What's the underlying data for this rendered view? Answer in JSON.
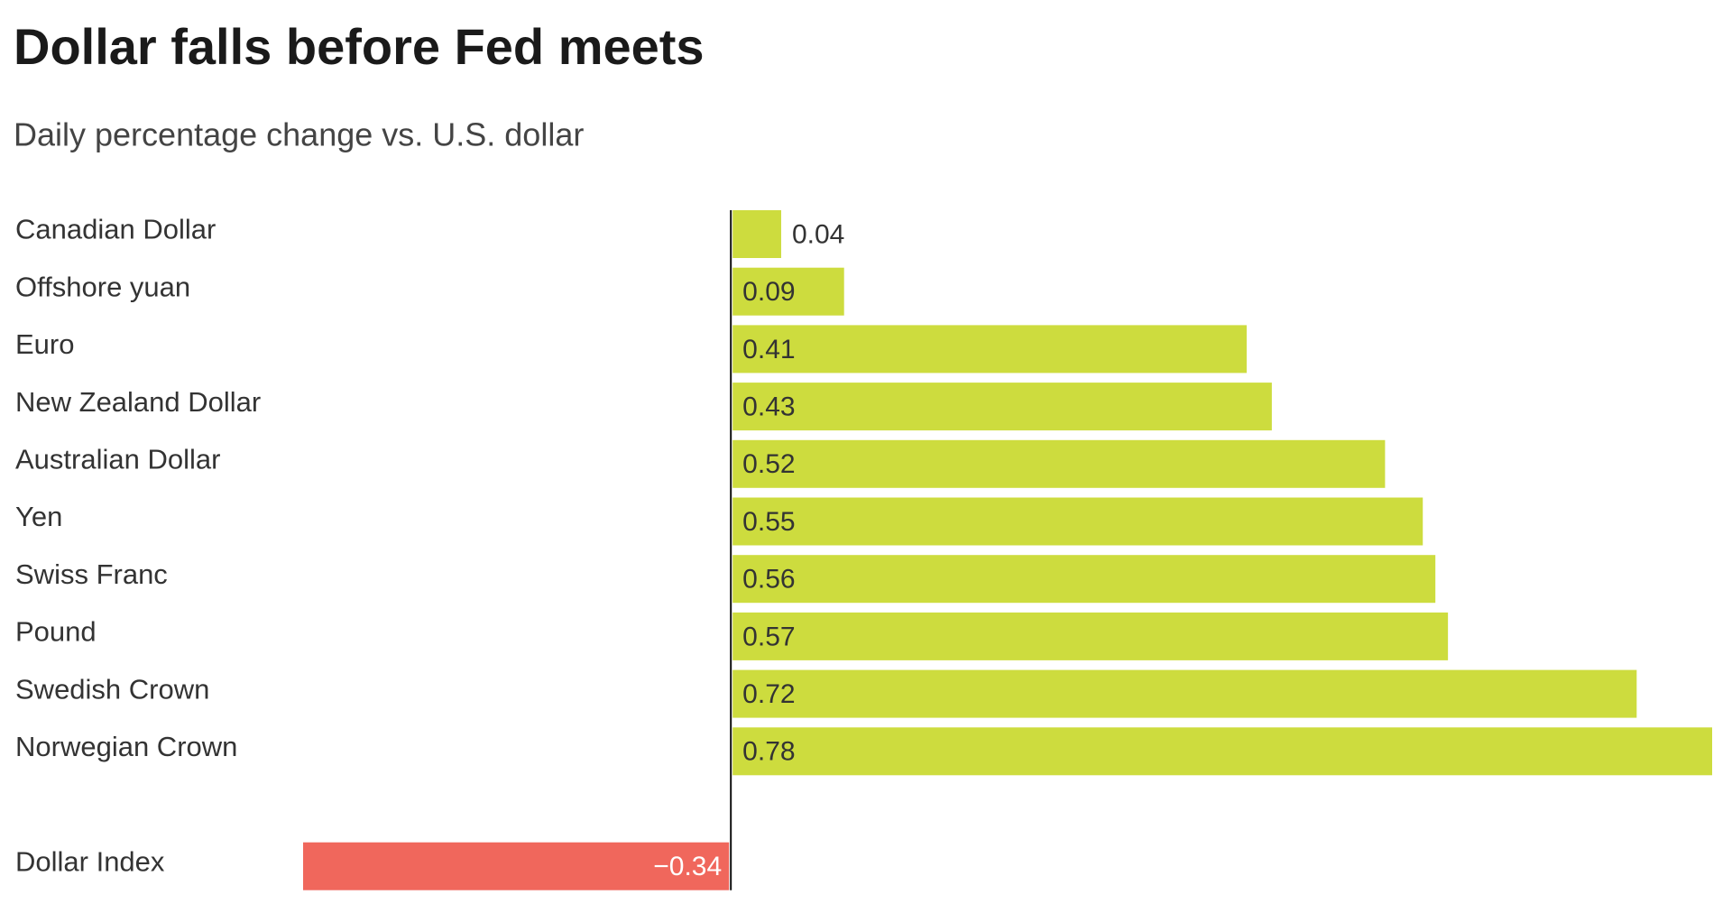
{
  "chart_data": {
    "type": "bar",
    "orientation": "horizontal",
    "title": "Dollar falls before Fed meets",
    "subtitle": "Daily percentage change vs. U.S. dollar",
    "categories": [
      "Canadian Dollar",
      "Offshore yuan",
      "Euro",
      "New Zealand Dollar",
      "Australian Dollar",
      "Yen",
      "Swiss Franc",
      "Pound",
      "Swedish Crown",
      "Norwegian Crown",
      null,
      "Dollar Index"
    ],
    "values": [
      0.04,
      0.09,
      0.41,
      0.43,
      0.52,
      0.55,
      0.56,
      0.57,
      0.72,
      0.78,
      null,
      -0.34
    ],
    "value_labels": [
      "0.04",
      "0.09",
      "0.41",
      "0.43",
      "0.52",
      "0.55",
      "0.56",
      "0.57",
      "0.72",
      "0.78",
      null,
      "−0.34"
    ],
    "color": "#cddc3e",
    "negative_color": "#f0675c"
  }
}
